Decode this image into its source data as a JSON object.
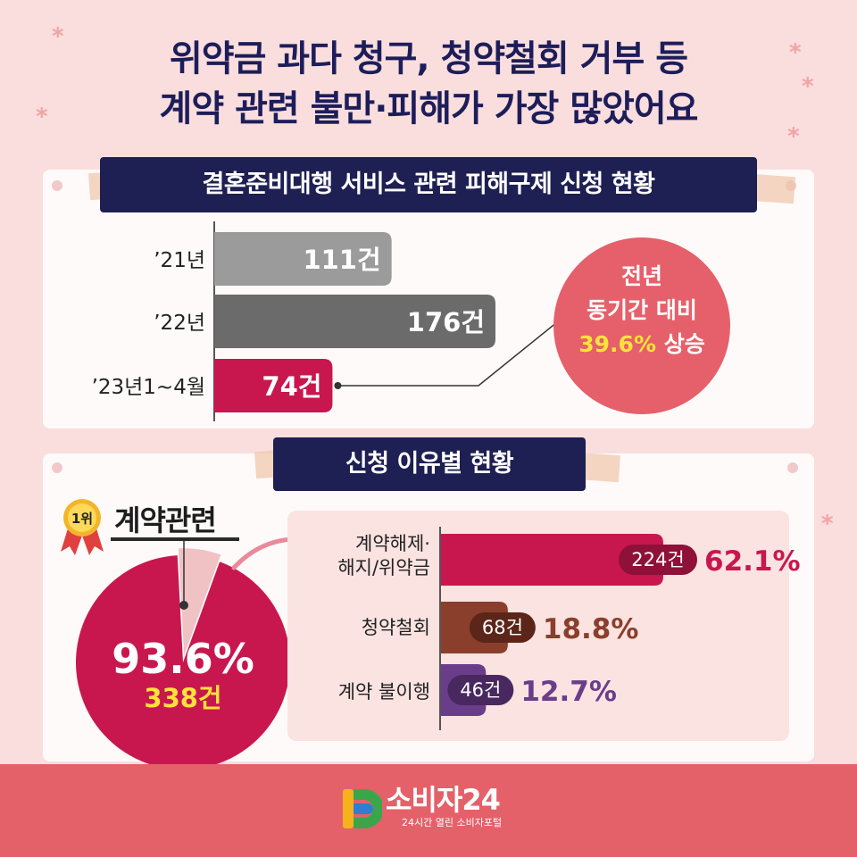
{
  "headline": {
    "line1": "위약금 과다 청구, 청약철회 거부 등",
    "line2": "계약 관련 불만·피해가 가장 많았어요"
  },
  "section1": {
    "title": "결혼준비대행 서비스 관련 피해구제 신청 현황"
  },
  "section2": {
    "title": "신청 이유별 현황"
  },
  "callout": {
    "line1": "전년",
    "line2": "동기간 대비",
    "highlight": "39.6%",
    "suffix": "상승"
  },
  "rank": {
    "badge": "1위",
    "title": "계약관련"
  },
  "pie": {
    "percent": "93.6%",
    "count": "338건"
  },
  "footer": {
    "logo_text": "소비자24",
    "logo_sub": "24시간 열린 소비자포털"
  },
  "colors": {
    "navy": "#1e1f52",
    "bar_2021": "#9b9b9b",
    "bar_2022": "#6b6b6b",
    "bar_2023": "#c8174f",
    "crimson": "#c8174f",
    "brown": "#8a3f2c",
    "purple": "#6a3d8a",
    "accent_yellow": "#ffe23a",
    "callout_red": "#e5606a"
  },
  "chart_data": [
    {
      "type": "bar",
      "orientation": "horizontal",
      "categories": [
        "’21년",
        "’22년",
        "’23년1~4월"
      ],
      "values": [
        111,
        176,
        74
      ],
      "value_labels": [
        "111건",
        "176건",
        "74건"
      ],
      "unit": "건"
    },
    {
      "type": "pie",
      "categories": [
        "계약관련",
        ""
      ],
      "values": [
        93.6,
        6.4
      ],
      "labels": [
        "93.6%",
        ""
      ],
      "count_label": "338건"
    },
    {
      "type": "bar",
      "orientation": "horizontal",
      "categories": [
        "계약해제·해지/위약금",
        "청약철회",
        "계약 불이행"
      ],
      "category_lines": [
        [
          "계약해제·",
          "해지/위약금"
        ],
        [
          "청약철회"
        ],
        [
          "계약 불이행"
        ]
      ],
      "values": [
        224,
        68,
        46
      ],
      "count_labels": [
        "224건",
        "68건",
        "46건"
      ],
      "percents": [
        62.1,
        18.8,
        12.7
      ],
      "percent_labels": [
        "62.1%",
        "18.8%",
        "12.7%"
      ]
    }
  ]
}
